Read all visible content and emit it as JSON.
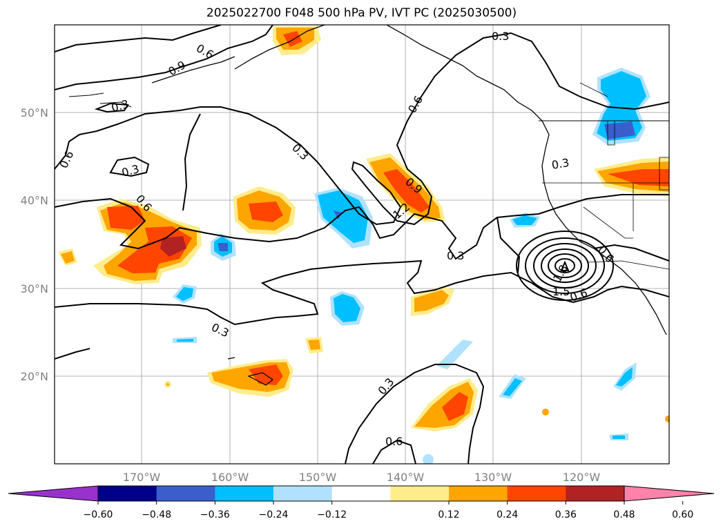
{
  "title": "2025022700 F048 500 hPa PV, IVT PC (2025030500)",
  "map": {
    "lon_labels": [
      "170°W",
      "160°W",
      "150°W",
      "140°W",
      "130°W",
      "120°W"
    ],
    "lat_labels": [
      "50°N",
      "40°N",
      "30°N",
      "20°N"
    ],
    "contour_labels": [
      "0.3",
      "0.6",
      "0.9",
      "1.2",
      "1.5",
      "1.8"
    ]
  },
  "colorbar": {
    "ticks": [
      "−0.60",
      "−0.48",
      "−0.36",
      "−0.24",
      "−0.12",
      "0.12",
      "0.24",
      "0.36",
      "0.48",
      "0.60"
    ],
    "colors": [
      "#9932cc",
      "#00008b",
      "#3a5fcd",
      "#00bfff",
      "#b0e2ff",
      "#ffffff",
      "#ffec8b",
      "#ffa500",
      "#ff4500",
      "#b22222",
      "#ff82ab"
    ]
  }
}
